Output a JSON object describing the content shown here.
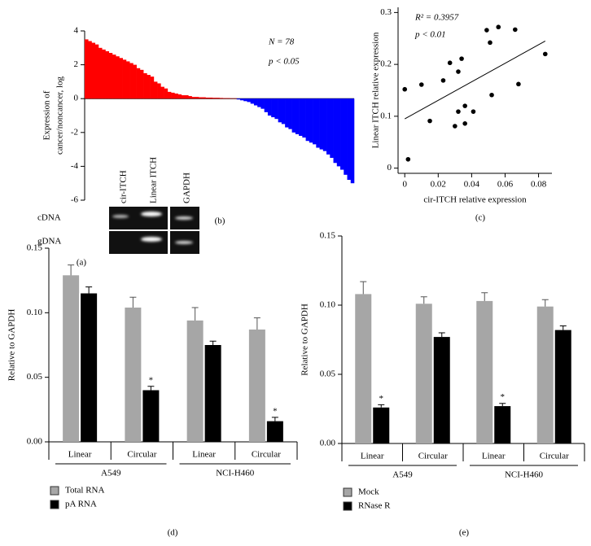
{
  "gel": {
    "lanes": [
      "cir-ITCH",
      "Linear ITCH",
      "GAPDH"
    ],
    "rows": [
      "cDNA",
      "gDNA"
    ],
    "caption": "(a)"
  },
  "chart_data": [
    {
      "type": "bar",
      "caption": "(b)",
      "ylabel": [
        "Expression of",
        "cancer/noncancer, log"
      ],
      "annotations": [
        "N = 78",
        "p < 0.05"
      ],
      "positive_color": "#ff0000",
      "negative_color": "#0000ff",
      "values": [
        3.5,
        3.4,
        3.3,
        3.2,
        3.0,
        2.9,
        2.8,
        2.7,
        2.6,
        2.5,
        2.4,
        2.3,
        2.2,
        2.1,
        2.0,
        1.8,
        1.7,
        1.5,
        1.4,
        1.3,
        1.0,
        0.9,
        0.7,
        0.6,
        0.4,
        0.35,
        0.3,
        0.25,
        0.2,
        0.2,
        0.15,
        0.1,
        0.1,
        0.08,
        0.08,
        0.06,
        0.06,
        0.05,
        0.05,
        0.04,
        0.03,
        0.03,
        0.02,
        0.02,
        -0.05,
        -0.1,
        -0.15,
        -0.2,
        -0.3,
        -0.4,
        -0.5,
        -0.6,
        -0.8,
        -1.0,
        -1.1,
        -1.2,
        -1.4,
        -1.5,
        -1.7,
        -1.8,
        -2.0,
        -2.1,
        -2.2,
        -2.3,
        -2.5,
        -2.6,
        -2.7,
        -2.9,
        -3.0,
        -3.1,
        -3.3,
        -3.5,
        -3.8,
        -4.0,
        -4.2,
        -4.5,
        -4.8,
        -5.0
      ],
      "ylim": [
        -6,
        4
      ],
      "yticks": [
        -6,
        -4,
        -2,
        0,
        2,
        4
      ]
    },
    {
      "type": "scatter",
      "caption": "(c)",
      "xlabel": "cir-ITCH relative expression",
      "ylabel": "Linear ITCH relative expression",
      "annotations": [
        "R² = 0.3957",
        "p < 0.01"
      ],
      "color": "#000000",
      "x": [
        0,
        0.002,
        0.01,
        0.015,
        0.023,
        0.027,
        0.03,
        0.032,
        0.034,
        0.032,
        0.036,
        0.036,
        0.041,
        0.049,
        0.051,
        0.056,
        0.052,
        0.066,
        0.068,
        0.084
      ],
      "y": [
        0.152,
        0.017,
        0.161,
        0.091,
        0.169,
        0.203,
        0.081,
        0.109,
        0.211,
        0.186,
        0.12,
        0.086,
        0.109,
        0.266,
        0.242,
        0.272,
        0.141,
        0.267,
        0.162,
        0.22
      ],
      "trendline": {
        "x": [
          0,
          0.084
        ],
        "y": [
          0.095,
          0.245
        ]
      },
      "xlim": [
        -0.004,
        0.088
      ],
      "xticks": [
        0,
        0.02,
        0.04,
        0.06,
        0.08
      ],
      "ylim": [
        -0.01,
        0.31
      ],
      "yticks": [
        0,
        0.1,
        0.2,
        0.3
      ]
    },
    {
      "type": "grouped_bar",
      "caption": "(d)",
      "ylabel": "Relative to GAPDH",
      "categories": [
        "Linear",
        "Circular",
        "Linear",
        "Circular"
      ],
      "groups": [
        "A549",
        "NCI-H460"
      ],
      "series": [
        {
          "name": "Total RNA",
          "color": "#a6a6a6",
          "values": [
            0.129,
            0.104,
            0.094,
            0.087
          ],
          "errors": [
            0.008,
            0.008,
            0.01,
            0.009
          ],
          "significance": [
            null,
            null,
            null,
            null
          ]
        },
        {
          "name": "pA RNA",
          "color": "#000000",
          "values": [
            0.115,
            0.04,
            0.075,
            0.016
          ],
          "errors": [
            0.005,
            0.003,
            0.003,
            0.003
          ],
          "significance": [
            null,
            "*",
            null,
            "*"
          ]
        }
      ],
      "ylim": [
        0,
        0.15
      ],
      "yticks": [
        {
          "value": 0,
          "label": "0.00"
        },
        0.05,
        {
          "value": 0.1,
          "label": "0.10"
        },
        0.15
      ]
    },
    {
      "type": "grouped_bar",
      "caption": "(e)",
      "ylabel": "Relative to GAPDH",
      "categories": [
        "Linear",
        "Circular",
        "Linear",
        "Circular"
      ],
      "groups": [
        "A549",
        "NCI-H460"
      ],
      "series": [
        {
          "name": "Mock",
          "color": "#a6a6a6",
          "values": [
            0.108,
            0.101,
            0.103,
            0.099
          ],
          "errors": [
            0.009,
            0.005,
            0.006,
            0.005
          ],
          "significance": [
            null,
            null,
            null,
            null
          ]
        },
        {
          "name": "RNase R",
          "color": "#000000",
          "values": [
            0.026,
            0.077,
            0.027,
            0.082
          ],
          "errors": [
            0.002,
            0.003,
            0.002,
            0.003
          ],
          "significance": [
            "*",
            null,
            "*",
            null
          ]
        }
      ],
      "ylim": [
        0,
        0.15
      ],
      "yticks": [
        {
          "value": 0,
          "label": "0.00"
        },
        0.05,
        {
          "value": 0.1,
          "label": "0.10"
        },
        0.15
      ]
    }
  ]
}
